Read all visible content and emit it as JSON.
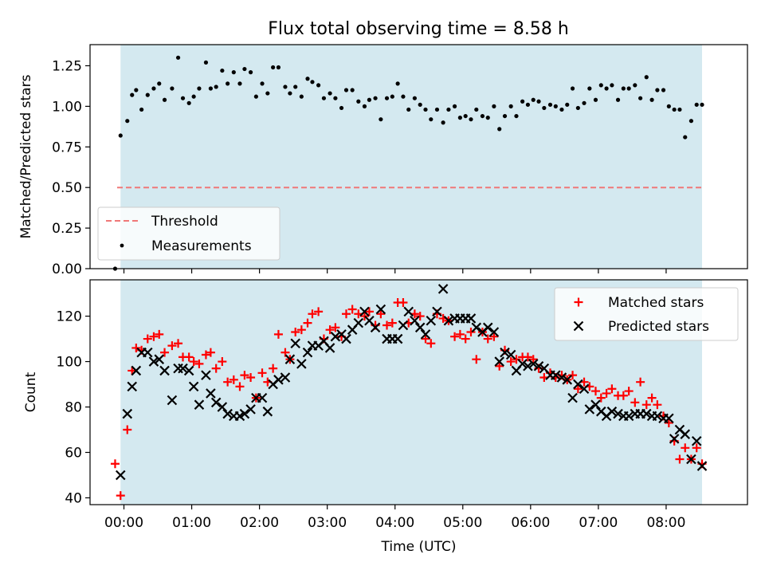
{
  "chart_data": [
    {
      "type": "scatter",
      "title": "Flux total observing time = 8.58 h",
      "xlabel": "",
      "ylabel": "Matched/Predicted stars",
      "xlim": [
        -0.5,
        9.2
      ],
      "ylim": [
        0,
        1.38
      ],
      "yticks": [
        "0.00",
        "0.25",
        "0.50",
        "0.75",
        "1.00",
        "1.25"
      ],
      "yticks_values": [
        0,
        0.25,
        0.5,
        0.75,
        1.0,
        1.25
      ],
      "observing_window_hours": [
        -0.05,
        8.53
      ],
      "observing_window_color": "#d4e9f0",
      "threshold": {
        "name": "Threshold",
        "value": 0.5,
        "x_range": [
          -0.1,
          8.53
        ],
        "color": "#f07878",
        "style": "dashed"
      },
      "legend": {
        "placement": "lower-left",
        "entries": [
          "Threshold",
          "Measurements"
        ]
      },
      "series": [
        {
          "name": "Measurements",
          "marker": "dot",
          "color": "#000000",
          "x": [
            -0.13,
            -0.05,
            0.05,
            0.12,
            0.18,
            0.26,
            0.35,
            0.44,
            0.52,
            0.6,
            0.71,
            0.8,
            0.87,
            0.96,
            1.03,
            1.11,
            1.21,
            1.28,
            1.36,
            1.45,
            1.53,
            1.62,
            1.71,
            1.78,
            1.87,
            1.95,
            2.04,
            2.12,
            2.2,
            2.28,
            2.38,
            2.45,
            2.53,
            2.62,
            2.71,
            2.78,
            2.87,
            2.95,
            3.04,
            3.12,
            3.21,
            3.28,
            3.37,
            3.46,
            3.55,
            3.62,
            3.71,
            3.79,
            3.88,
            3.96,
            4.04,
            4.12,
            4.2,
            4.29,
            4.37,
            4.45,
            4.53,
            4.62,
            4.71,
            4.79,
            4.88,
            4.96,
            5.04,
            5.12,
            5.2,
            5.29,
            5.37,
            5.46,
            5.54,
            5.62,
            5.71,
            5.79,
            5.88,
            5.96,
            6.04,
            6.12,
            6.2,
            6.29,
            6.37,
            6.46,
            6.54,
            6.62,
            6.7,
            6.79,
            6.87,
            6.96,
            7.04,
            7.12,
            7.2,
            7.29,
            7.37,
            7.45,
            7.54,
            7.62,
            7.71,
            7.79,
            7.87,
            7.96,
            8.04,
            8.12,
            8.2,
            8.28,
            8.37,
            8.45,
            8.53
          ],
          "values": [
            0.0,
            0.82,
            0.91,
            1.07,
            1.1,
            0.98,
            1.07,
            1.11,
            1.14,
            1.04,
            1.11,
            1.3,
            1.05,
            1.02,
            1.06,
            1.11,
            1.27,
            1.11,
            1.12,
            1.22,
            1.14,
            1.21,
            1.14,
            1.23,
            1.21,
            1.06,
            1.14,
            1.08,
            1.24,
            1.24,
            1.12,
            1.08,
            1.12,
            1.06,
            1.17,
            1.15,
            1.13,
            1.05,
            1.08,
            1.05,
            0.99,
            1.1,
            1.1,
            1.03,
            1.0,
            1.04,
            1.05,
            0.92,
            1.05,
            1.06,
            1.14,
            1.06,
            0.98,
            1.05,
            1.01,
            0.98,
            0.92,
            0.98,
            0.9,
            0.98,
            1.0,
            0.93,
            0.94,
            0.92,
            0.98,
            0.94,
            0.93,
            1.0,
            0.86,
            0.94,
            1.0,
            0.94,
            1.03,
            1.01,
            1.04,
            1.03,
            0.99,
            1.01,
            1.0,
            0.98,
            1.01,
            1.11,
            0.99,
            1.02,
            1.11,
            1.04,
            1.13,
            1.11,
            1.13,
            1.04,
            1.11,
            1.11,
            1.13,
            1.05,
            1.18,
            1.04,
            1.1,
            1.1,
            1.0,
            0.98,
            0.98,
            0.81,
            0.91,
            1.01,
            1.01
          ]
        }
      ]
    },
    {
      "type": "scatter",
      "title": "",
      "xlabel": "Time (UTC)",
      "ylabel": "Count",
      "xlim": [
        -0.5,
        9.2
      ],
      "ylim": [
        37,
        136
      ],
      "yticks": [
        "40",
        "60",
        "80",
        "100",
        "120"
      ],
      "yticks_values": [
        40,
        60,
        80,
        100,
        120
      ],
      "xticks": [
        "00:00",
        "01:00",
        "02:00",
        "03:00",
        "04:00",
        "05:00",
        "06:00",
        "07:00",
        "08:00"
      ],
      "xticks_values": [
        0,
        1,
        2,
        3,
        4,
        5,
        6,
        7,
        8
      ],
      "observing_window_hours": [
        -0.05,
        8.53
      ],
      "observing_window_color": "#d4e9f0",
      "legend": {
        "placement": "upper-right",
        "entries": [
          "Matched stars",
          "Predicted stars"
        ]
      },
      "x": [
        -0.13,
        -0.05,
        0.05,
        0.12,
        0.18,
        0.26,
        0.35,
        0.44,
        0.52,
        0.6,
        0.71,
        0.8,
        0.87,
        0.96,
        1.03,
        1.11,
        1.21,
        1.28,
        1.36,
        1.45,
        1.53,
        1.62,
        1.71,
        1.78,
        1.87,
        1.95,
        2.04,
        2.12,
        2.2,
        2.28,
        2.38,
        2.45,
        2.53,
        2.62,
        2.71,
        2.78,
        2.87,
        2.95,
        3.04,
        3.12,
        3.21,
        3.28,
        3.37,
        3.46,
        3.55,
        3.62,
        3.71,
        3.79,
        3.88,
        3.96,
        4.04,
        4.12,
        4.2,
        4.29,
        4.37,
        4.45,
        4.53,
        4.62,
        4.71,
        4.79,
        4.88,
        4.96,
        5.04,
        5.12,
        5.2,
        5.29,
        5.37,
        5.46,
        5.54,
        5.62,
        5.71,
        5.79,
        5.88,
        5.96,
        6.04,
        6.12,
        6.2,
        6.29,
        6.37,
        6.46,
        6.54,
        6.62,
        6.7,
        6.79,
        6.87,
        6.96,
        7.04,
        7.12,
        7.2,
        7.29,
        7.37,
        7.45,
        7.54,
        7.62,
        7.71,
        7.79,
        7.87,
        7.96,
        8.04,
        8.12,
        8.2,
        8.28,
        8.37,
        8.45,
        8.53
      ],
      "series": [
        {
          "name": "Matched stars",
          "marker": "plus",
          "color": "#ff0000",
          "values": [
            55,
            41,
            70,
            96,
            106,
            105,
            110,
            111,
            112,
            104,
            107,
            108,
            102,
            102,
            100,
            99,
            103,
            104,
            97,
            100,
            91,
            92,
            89,
            94,
            93,
            84,
            95,
            91,
            97,
            112,
            104,
            101,
            113,
            114,
            117,
            121,
            122,
            110,
            114,
            115,
            111,
            121,
            123,
            121,
            120,
            122,
            116,
            121,
            116,
            117,
            126,
            126,
            117,
            121,
            120,
            110,
            108,
            121,
            119,
            118,
            111,
            112,
            110,
            113,
            101,
            113,
            110,
            111,
            98,
            105,
            100,
            101,
            102,
            102,
            101,
            97,
            93,
            95,
            93,
            94,
            92,
            94,
            88,
            91,
            89,
            87,
            84,
            86,
            88,
            85,
            85,
            87,
            82,
            91,
            81,
            84,
            81,
            76,
            73,
            65,
            57,
            62,
            57,
            62,
            55
          ]
        },
        {
          "name": "Predicted stars",
          "marker": "x",
          "color": "#000000",
          "values": [
            null,
            50,
            77,
            89,
            96,
            104,
            104,
            100,
            101,
            96,
            83,
            97,
            97,
            96,
            89,
            81,
            94,
            86,
            82,
            80,
            77,
            76,
            76,
            77,
            79,
            84,
            84,
            78,
            90,
            92,
            93,
            101,
            108,
            99,
            104,
            107,
            107,
            109,
            106,
            111,
            112,
            110,
            114,
            117,
            122,
            118,
            115,
            123,
            110,
            110,
            110,
            116,
            122,
            118,
            115,
            112,
            118,
            122,
            132,
            118,
            119,
            119,
            119,
            119,
            115,
            113,
            115,
            113,
            100,
            104,
            103,
            96,
            99,
            98,
            99,
            98,
            97,
            94,
            94,
            93,
            92,
            84,
            90,
            88,
            79,
            81,
            78,
            76,
            78,
            77,
            76,
            76,
            77,
            77,
            77,
            76,
            76,
            75,
            75,
            66,
            70,
            68,
            57,
            65,
            54
          ]
        }
      ]
    }
  ]
}
